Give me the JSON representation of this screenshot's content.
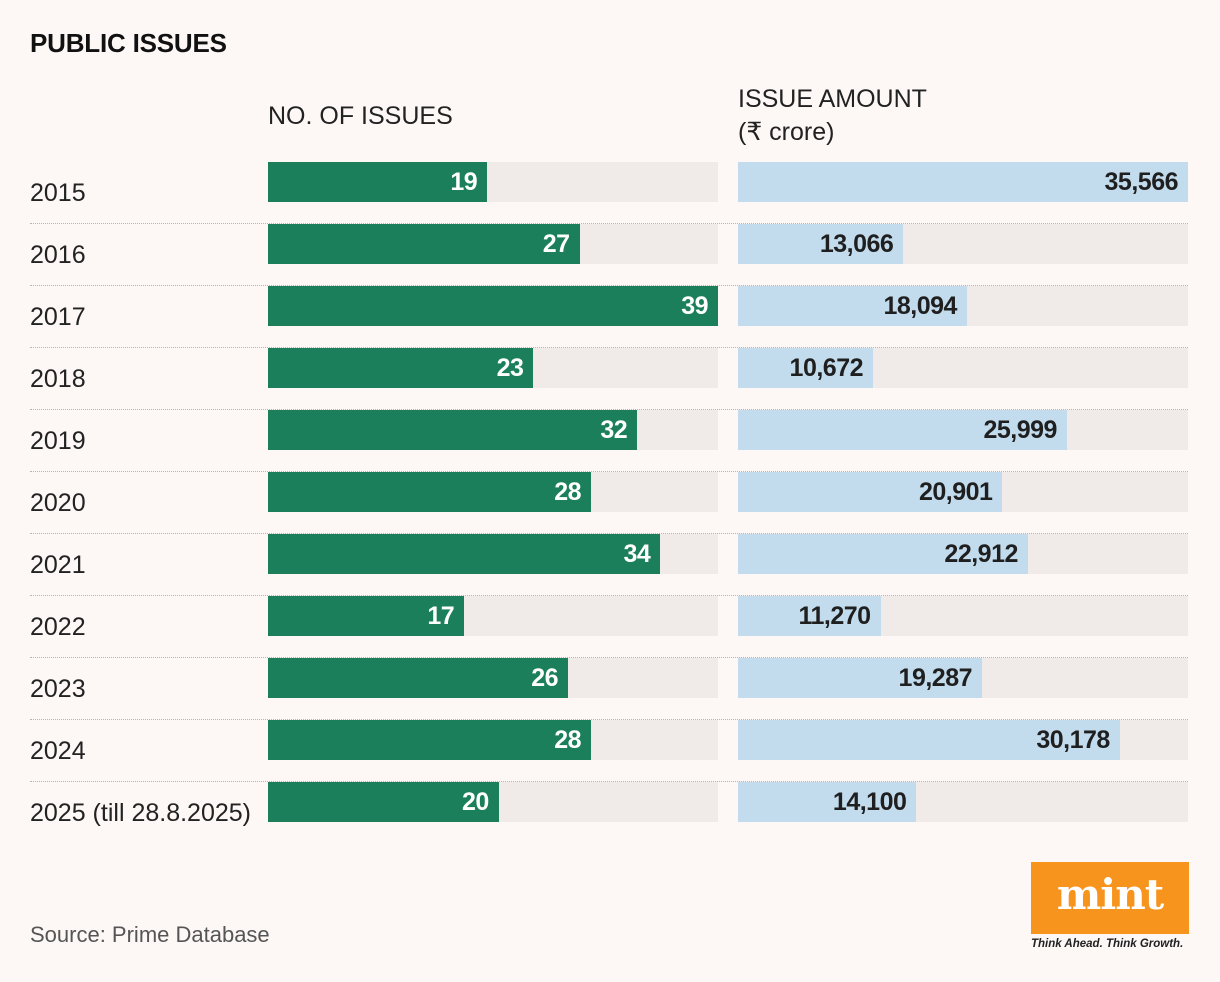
{
  "chart_data": {
    "type": "bar",
    "title": "PUBLIC ISSUES",
    "categories": [
      "2015",
      "2016",
      "2017",
      "2018",
      "2019",
      "2020",
      "2021",
      "2022",
      "2023",
      "2024",
      "2025 (till 28.8.2025)"
    ],
    "series": [
      {
        "name": "NO. OF ISSUES",
        "values": [
          19,
          27,
          39,
          23,
          32,
          28,
          34,
          17,
          26,
          28,
          20
        ],
        "labels": [
          "19",
          "27",
          "39",
          "23",
          "32",
          "28",
          "34",
          "17",
          "26",
          "28",
          "20"
        ],
        "max": 39,
        "color": "#1a7f5a"
      },
      {
        "name": "ISSUE AMOUNT",
        "unit": "(₹ crore)",
        "values": [
          35566,
          13066,
          18094,
          10672,
          25999,
          20901,
          22912,
          11270,
          19287,
          30178,
          14100
        ],
        "labels": [
          "35,566",
          "13,066",
          "18,094",
          "10,672",
          "25,999",
          "20,901",
          "22,912",
          "11,270",
          "19,287",
          "30,178",
          "14,100"
        ],
        "max": 35566,
        "color": "#c2dcee"
      }
    ],
    "source": "Source: Prime Database"
  },
  "logo": {
    "name": "mint",
    "tagline": "Think Ahead. Think Growth.",
    "color": "#f7941d"
  }
}
